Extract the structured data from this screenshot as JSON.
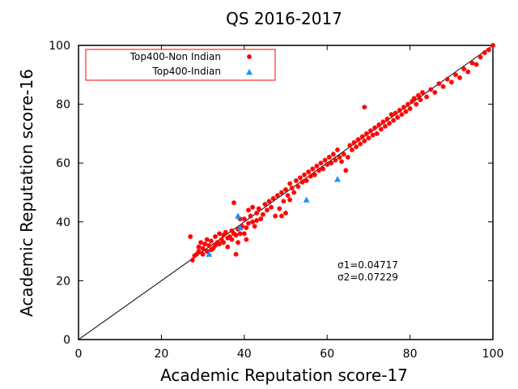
{
  "chart_data": {
    "type": "scatter",
    "title": "QS 2016-2017",
    "xlabel": "Academic Reputation score-17",
    "ylabel": "Academic Reputation score-16",
    "xlim": [
      0,
      100
    ],
    "ylim": [
      0,
      100
    ],
    "xticks": [
      "0",
      "20",
      "40",
      "60",
      "80",
      "100"
    ],
    "yticks": [
      "0",
      "20",
      "40",
      "60",
      "80",
      "100"
    ],
    "grid": false,
    "legend_position": "top-left",
    "reference_line": {
      "x": [
        0,
        100
      ],
      "y": [
        0,
        100
      ],
      "color": "#000000"
    },
    "annotations": [
      "σ1=0.04717",
      "σ2=0.07229"
    ],
    "series": [
      {
        "name": "Top400-Non Indian",
        "marker": "star",
        "color": "#ff0000",
        "points": [
          [
            27.0,
            35.0
          ],
          [
            27.5,
            27.0
          ],
          [
            28.0,
            28.5
          ],
          [
            28.5,
            29.0
          ],
          [
            29.0,
            30.0
          ],
          [
            29.0,
            31.5
          ],
          [
            29.5,
            33.0
          ],
          [
            30.0,
            31.0
          ],
          [
            30.0,
            29.0
          ],
          [
            30.5,
            32.5
          ],
          [
            31.0,
            30.0
          ],
          [
            31.0,
            34.0
          ],
          [
            31.5,
            32.0
          ],
          [
            32.0,
            33.5
          ],
          [
            32.0,
            30.5
          ],
          [
            32.5,
            31.0
          ],
          [
            33.0,
            35.0
          ],
          [
            33.0,
            32.0
          ],
          [
            33.5,
            33.0
          ],
          [
            34.0,
            36.0
          ],
          [
            34.0,
            32.5
          ],
          [
            34.5,
            34.0
          ],
          [
            35.0,
            35.5
          ],
          [
            35.0,
            33.0
          ],
          [
            35.5,
            36.5
          ],
          [
            36.0,
            34.5
          ],
          [
            36.0,
            31.5
          ],
          [
            36.5,
            35.0
          ],
          [
            37.0,
            37.0
          ],
          [
            37.0,
            34.0
          ],
          [
            37.5,
            36.0
          ],
          [
            37.5,
            46.5
          ],
          [
            38.0,
            35.5
          ],
          [
            38.0,
            29.0
          ],
          [
            38.5,
            37.5
          ],
          [
            38.5,
            33.0
          ],
          [
            39.0,
            41.0
          ],
          [
            39.0,
            36.0
          ],
          [
            39.5,
            38.5
          ],
          [
            40.0,
            41.0
          ],
          [
            40.0,
            36.0
          ],
          [
            40.5,
            38.0
          ],
          [
            40.5,
            34.0
          ],
          [
            41.0,
            39.5
          ],
          [
            41.0,
            44.0
          ],
          [
            41.5,
            42.0
          ],
          [
            42.0,
            40.0
          ],
          [
            42.0,
            45.0
          ],
          [
            42.5,
            38.5
          ],
          [
            43.0,
            43.0
          ],
          [
            43.0,
            40.5
          ],
          [
            43.5,
            44.5
          ],
          [
            44.0,
            41.0
          ],
          [
            44.5,
            42.5
          ],
          [
            45.0,
            46.0
          ],
          [
            45.5,
            44.0
          ],
          [
            46.0,
            47.0
          ],
          [
            46.5,
            45.0
          ],
          [
            47.0,
            48.0
          ],
          [
            47.5,
            42.0
          ],
          [
            48.0,
            49.0
          ],
          [
            48.5,
            44.5
          ],
          [
            49.0,
            42.0
          ],
          [
            49.0,
            50.0
          ],
          [
            49.5,
            47.0
          ],
          [
            50.0,
            51.0
          ],
          [
            50.0,
            43.0
          ],
          [
            50.5,
            49.0
          ],
          [
            51.0,
            53.0
          ],
          [
            51.0,
            47.5
          ],
          [
            51.5,
            51.5
          ],
          [
            52.0,
            50.0
          ],
          [
            52.5,
            54.0
          ],
          [
            53.0,
            52.0
          ],
          [
            53.5,
            55.0
          ],
          [
            54.0,
            53.5
          ],
          [
            54.5,
            56.0
          ],
          [
            55.0,
            54.0
          ],
          [
            55.5,
            57.0
          ],
          [
            56.0,
            55.5
          ],
          [
            56.5,
            58.0
          ],
          [
            57.0,
            56.0
          ],
          [
            57.5,
            59.0
          ],
          [
            58.0,
            57.5
          ],
          [
            58.5,
            60.0
          ],
          [
            59.0,
            58.0
          ],
          [
            59.5,
            61.0
          ],
          [
            60.0,
            59.5
          ],
          [
            60.5,
            62.0
          ],
          [
            61.0,
            60.0
          ],
          [
            61.5,
            63.0
          ],
          [
            62.0,
            61.0
          ],
          [
            62.5,
            64.5
          ],
          [
            63.0,
            62.0
          ],
          [
            63.5,
            60.5
          ],
          [
            64.0,
            63.0
          ],
          [
            64.5,
            57.5
          ],
          [
            65.0,
            62.0
          ],
          [
            65.5,
            66.0
          ],
          [
            66.0,
            64.5
          ],
          [
            66.5,
            67.0
          ],
          [
            67.0,
            65.5
          ],
          [
            67.5,
            68.0
          ],
          [
            68.0,
            66.5
          ],
          [
            68.5,
            69.0
          ],
          [
            69.0,
            67.5
          ],
          [
            69.0,
            79.0
          ],
          [
            69.5,
            70.0
          ],
          [
            70.0,
            68.5
          ],
          [
            70.5,
            71.0
          ],
          [
            71.0,
            69.5
          ],
          [
            71.5,
            72.0
          ],
          [
            72.0,
            70.0
          ],
          [
            72.5,
            73.0
          ],
          [
            73.0,
            71.5
          ],
          [
            73.5,
            74.0
          ],
          [
            74.0,
            72.5
          ],
          [
            74.5,
            75.0
          ],
          [
            75.0,
            73.5
          ],
          [
            75.5,
            76.5
          ],
          [
            76.0,
            74.5
          ],
          [
            76.5,
            77.0
          ],
          [
            77.0,
            75.5
          ],
          [
            77.5,
            78.0
          ],
          [
            78.0,
            76.5
          ],
          [
            78.5,
            79.0
          ],
          [
            79.0,
            77.5
          ],
          [
            79.5,
            80.0
          ],
          [
            80.0,
            78.5
          ],
          [
            80.5,
            81.0
          ],
          [
            81.0,
            82.0
          ],
          [
            81.5,
            80.0
          ],
          [
            82.0,
            83.0
          ],
          [
            82.5,
            81.5
          ],
          [
            83.0,
            84.0
          ],
          [
            84.0,
            82.5
          ],
          [
            85.0,
            85.0
          ],
          [
            86.0,
            84.0
          ],
          [
            87.0,
            87.0
          ],
          [
            88.0,
            86.0
          ],
          [
            89.0,
            88.5
          ],
          [
            90.0,
            87.5
          ],
          [
            91.0,
            90.0
          ],
          [
            92.0,
            89.0
          ],
          [
            93.0,
            92.0
          ],
          [
            94.0,
            91.0
          ],
          [
            95.0,
            94.0
          ],
          [
            96.0,
            93.5
          ],
          [
            97.0,
            96.0
          ],
          [
            98.0,
            97.5
          ],
          [
            99.0,
            98.5
          ],
          [
            100.0,
            100.0
          ]
        ]
      },
      {
        "name": "Top400-Indian",
        "marker": "triangle",
        "color": "#1e90ff",
        "points": [
          [
            31.5,
            29.0
          ],
          [
            38.5,
            42.0
          ],
          [
            39.0,
            38.0
          ],
          [
            55.0,
            47.5
          ],
          [
            62.5,
            54.5
          ]
        ]
      }
    ]
  }
}
